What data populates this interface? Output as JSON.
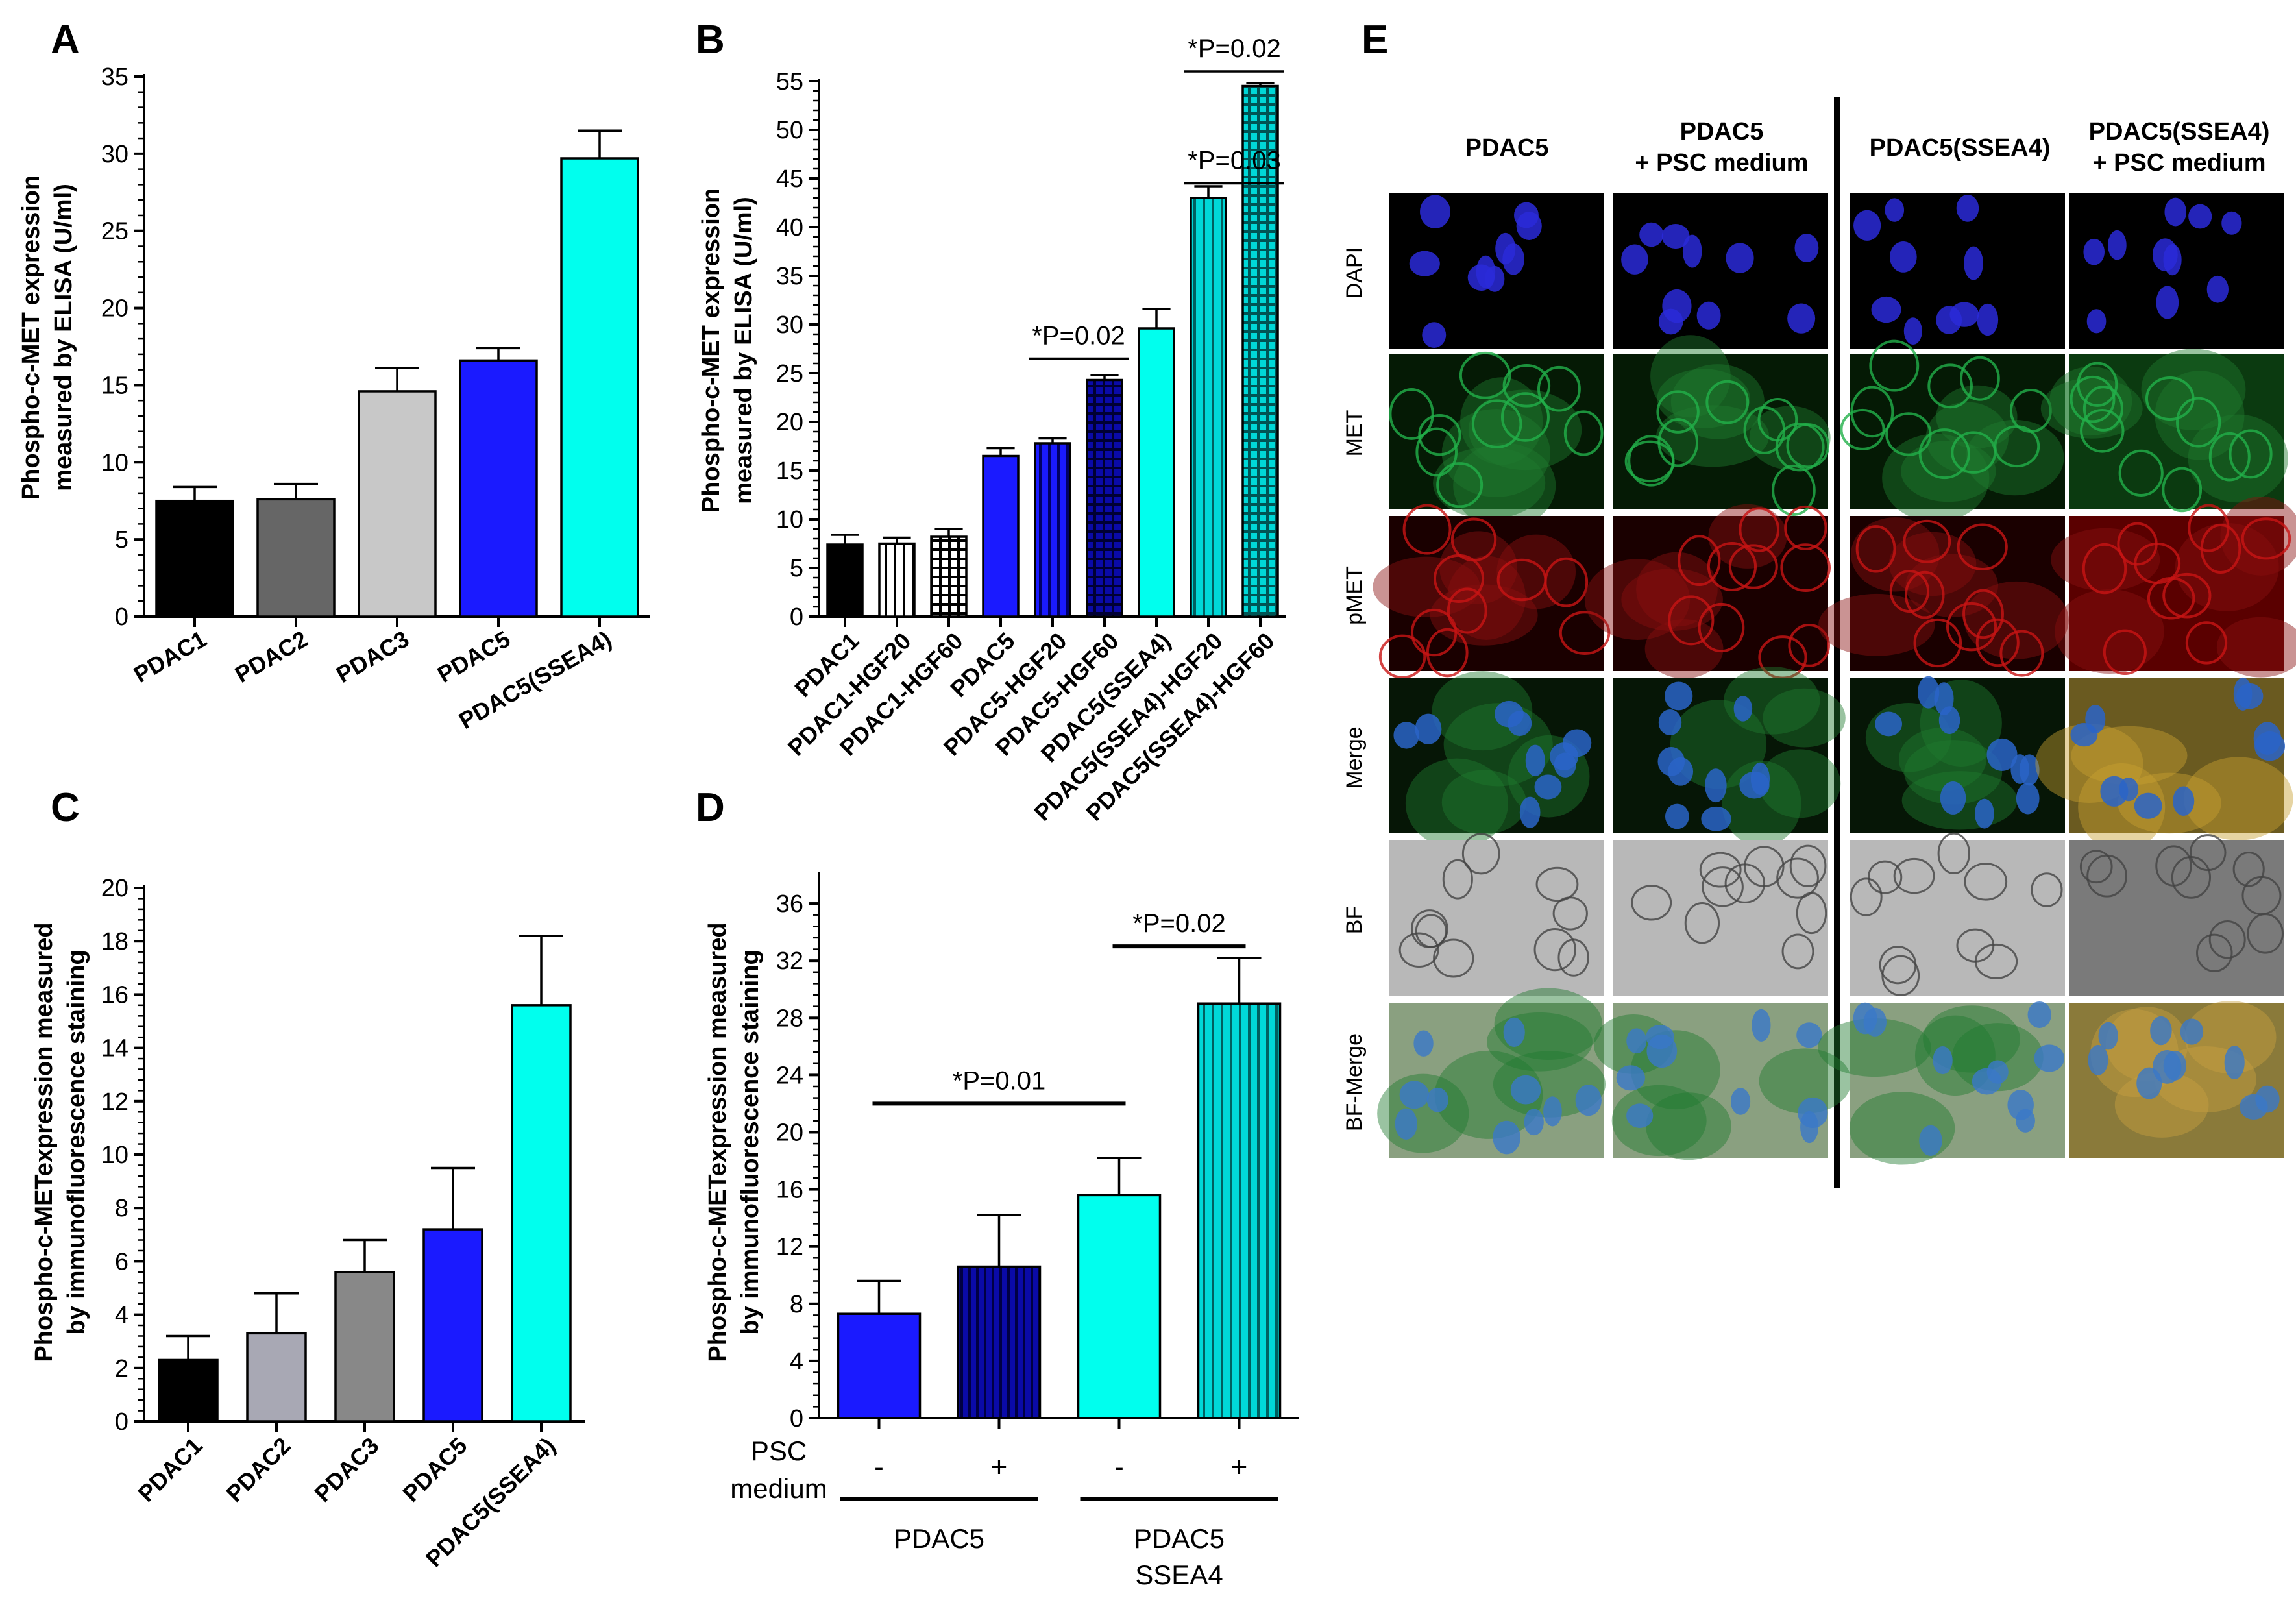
{
  "panels": {
    "A": "A",
    "B": "B",
    "C": "C",
    "D": "D",
    "E": "E"
  },
  "colors": {
    "black": "#000000",
    "dark_gray": "#666666",
    "light_gray": "#c8c8c8",
    "gray": "#888888",
    "lavender_gray": "#a8a8b4",
    "blue": "#1a1aff",
    "navy": "#0a0aa8",
    "cyan": "#00ffee",
    "teal": "#00c8c8",
    "white": "#ffffff"
  },
  "chart_data": [
    {
      "id": "A",
      "type": "bar",
      "ylabel_lines": [
        "Phospho-c-MET expression",
        "measured by ELISA (U/ml)"
      ],
      "ylim": [
        0,
        35
      ],
      "yticks": [
        0,
        5,
        10,
        15,
        20,
        25,
        30,
        35
      ],
      "categories": [
        "PDAC1",
        "PDAC2",
        "PDAC3",
        "PDAC5",
        "PDAC5(SSEA4)"
      ],
      "values": [
        7.5,
        7.6,
        14.6,
        16.6,
        29.7
      ],
      "errors": [
        0.9,
        1.0,
        1.5,
        0.8,
        1.8
      ],
      "fills": [
        "black",
        "dark_gray",
        "light_gray",
        "blue",
        "cyan"
      ],
      "patterns": [
        "solid",
        "solid",
        "solid",
        "solid",
        "solid"
      ],
      "annotations": []
    },
    {
      "id": "B",
      "type": "bar",
      "ylabel_lines": [
        "Phospho-c-MET expression",
        "measured by ELISA (U/ml)"
      ],
      "ylim": [
        0,
        55
      ],
      "yticks": [
        0,
        5,
        10,
        15,
        20,
        25,
        30,
        35,
        40,
        45,
        50,
        55
      ],
      "categories": [
        "PDAC1",
        "PDAC1-HGF20",
        "PDAC1-HGF60",
        "PDAC5",
        "PDAC5-HGF20",
        "PDAC5-HGF60",
        "PDAC5(SSEA4)",
        "PDAC5(SSEA4)-HGF20",
        "PDAC5(SSEA4)-HGF60"
      ],
      "values": [
        7.4,
        7.5,
        8.2,
        16.5,
        17.8,
        24.3,
        29.6,
        43.0,
        54.5
      ],
      "errors": [
        1.0,
        0.6,
        0.8,
        0.8,
        0.5,
        0.5,
        2.0,
        1.2,
        0.3
      ],
      "fills": [
        "black",
        "white",
        "white",
        "blue",
        "blue",
        "navy",
        "cyan",
        "teal",
        "teal"
      ],
      "patterns": [
        "solid",
        "vlines",
        "grid",
        "solid",
        "vlines",
        "grid",
        "solid",
        "vlines",
        "grid"
      ],
      "annotations": [
        {
          "text": "*P=0.02",
          "from": 4,
          "to": 5,
          "y": 26.5,
          "thick": false
        },
        {
          "text": "*P=0.03",
          "from": 7,
          "to": 8,
          "y": 44.5,
          "thick": false
        },
        {
          "text": "*P=0.02",
          "from": 7,
          "to": 8,
          "y": 56.0,
          "thick": false
        }
      ]
    },
    {
      "id": "C",
      "type": "bar",
      "ylabel_lines": [
        "Phospho-c-METexpression measured",
        "by immunofluorescence staining"
      ],
      "ylim": [
        0,
        20
      ],
      "yticks": [
        0,
        2,
        4,
        6,
        8,
        10,
        12,
        14,
        16,
        18,
        20
      ],
      "categories": [
        "PDAC1",
        "PDAC2",
        "PDAC3",
        "PDAC5",
        "PDAC5(SSEA4)"
      ],
      "values": [
        2.3,
        3.3,
        5.6,
        7.2,
        15.6
      ],
      "errors": [
        0.9,
        1.5,
        1.2,
        2.3,
        2.6
      ],
      "fills": [
        "black",
        "lavender_gray",
        "gray",
        "blue",
        "cyan"
      ],
      "patterns": [
        "solid",
        "solid",
        "solid",
        "solid",
        "solid"
      ],
      "annotations": []
    },
    {
      "id": "D",
      "type": "bar",
      "ylabel_lines": [
        "Phospho-c-METexpression measured",
        "by immunofluorescence staining"
      ],
      "ylim": [
        0,
        38
      ],
      "yticks": [
        0,
        4,
        8,
        12,
        16,
        20,
        24,
        28,
        32,
        36
      ],
      "categories": [
        "-",
        "+",
        "-",
        "+"
      ],
      "values": [
        7.3,
        10.6,
        15.6,
        29.0
      ],
      "errors": [
        2.3,
        3.6,
        2.6,
        3.2
      ],
      "fills": [
        "blue",
        "navy",
        "cyan",
        "teal"
      ],
      "patterns": [
        "solid",
        "vlines",
        "solid",
        "vlines"
      ],
      "annotations": [
        {
          "text": "*P=0.01",
          "from": 0,
          "to": 2,
          "y": 22.0,
          "thick": true
        },
        {
          "text": "*P=0.02",
          "from": 2,
          "to": 3,
          "y": 33.0,
          "thick": true
        }
      ],
      "row_label_lines": [
        "PSC",
        "medium"
      ],
      "groups": [
        {
          "label_lines": [
            "PDAC5"
          ],
          "from": 0,
          "to": 1
        },
        {
          "label_lines": [
            "PDAC5",
            "SSEA4"
          ],
          "from": 2,
          "to": 3
        }
      ]
    }
  ],
  "panel_e": {
    "column_headers": [
      [
        "PDAC5"
      ],
      [
        "PDAC5",
        "+ PSC medium"
      ],
      [
        "PDAC5(SSEA4)"
      ],
      [
        "PDAC5(SSEA4)",
        "+ PSC medium"
      ]
    ],
    "row_labels": [
      "DAPI",
      "MET",
      "pMET",
      "Merge",
      "BF",
      "BF-Merge"
    ]
  }
}
